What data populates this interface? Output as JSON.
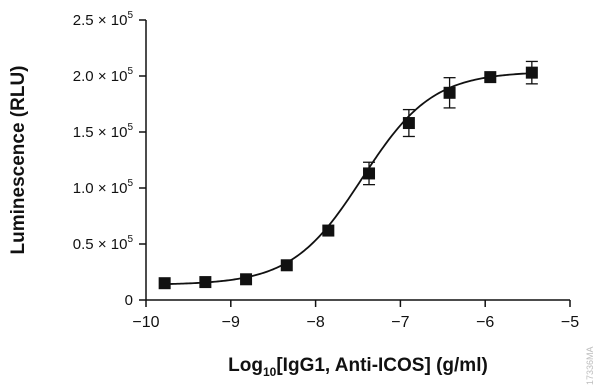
{
  "chart_data": {
    "type": "scatter",
    "xlabel": {
      "prefix": "Log",
      "subscript": "10",
      "suffix": "[IgG1, Anti-ICOS] (g/ml)"
    },
    "ylabel": "Luminescence (RLU)",
    "xlim": [
      -10,
      -5
    ],
    "ylim": [
      0,
      250000
    ],
    "x_ticks": [
      {
        "value": -10,
        "label": "−10"
      },
      {
        "value": -9,
        "label": "−9"
      },
      {
        "value": -8,
        "label": "−8"
      },
      {
        "value": -7,
        "label": "−7"
      },
      {
        "value": -6,
        "label": "−6"
      },
      {
        "value": -5,
        "label": "−5"
      }
    ],
    "y_ticks": [
      {
        "value": 0,
        "label": "0"
      },
      {
        "value": 50000,
        "mantissa": "0.5 × 10",
        "exponent": "5"
      },
      {
        "value": 100000,
        "mantissa": "1.0 × 10",
        "exponent": "5"
      },
      {
        "value": 150000,
        "mantissa": "1.5 × 10",
        "exponent": "5"
      },
      {
        "value": 200000,
        "mantissa": "2.0 × 10",
        "exponent": "5"
      },
      {
        "value": 250000,
        "mantissa": "2.5 × 10",
        "exponent": "5"
      }
    ],
    "grid": false,
    "legend": "none",
    "marker": "filled-square",
    "series": [
      {
        "x": [
          -9.78,
          -9.3,
          -8.82,
          -8.34,
          -7.85,
          -7.37,
          -6.9,
          -6.42,
          -5.94,
          -5.45
        ],
        "y": [
          15000,
          16000,
          18500,
          31000,
          62000,
          113000,
          158000,
          185000,
          199000,
          203000
        ],
        "y_error": [
          0,
          0,
          0,
          0,
          0,
          10000,
          12000,
          13500,
          0,
          10000
        ]
      }
    ],
    "fit_curve": {
      "type": "4PL",
      "bottom": 13500,
      "top": 204000,
      "log_ec50": -7.45,
      "hill_slope": 1.05
    },
    "watermark": "17336MA"
  }
}
